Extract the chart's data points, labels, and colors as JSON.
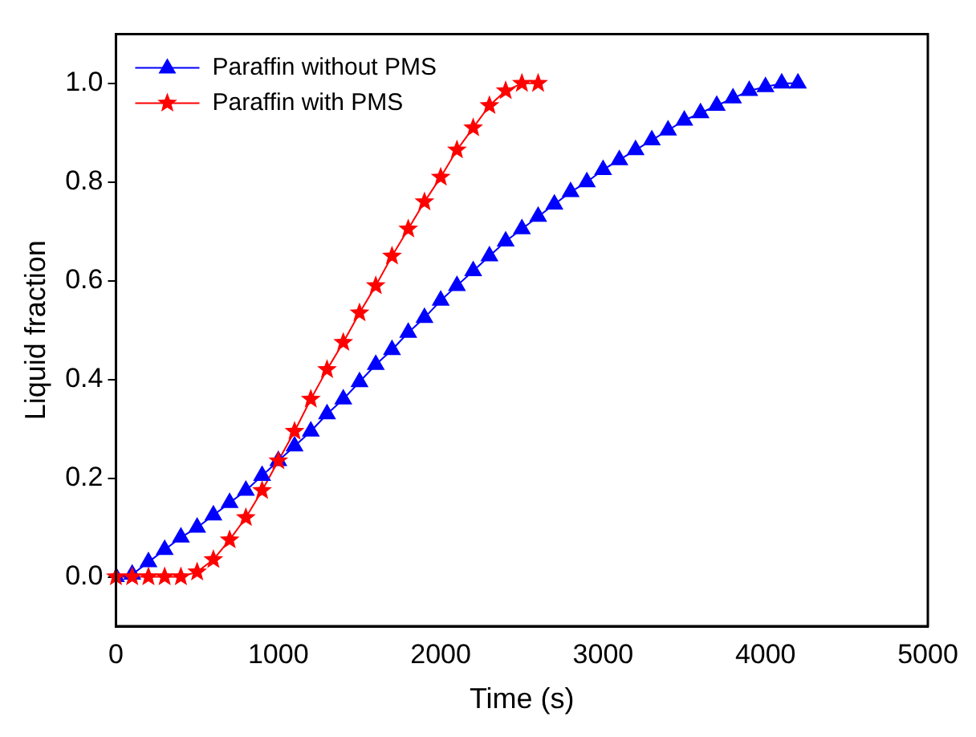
{
  "chart_data": {
    "type": "line",
    "xlabel": "Time (s)",
    "ylabel": "Liquid fraction",
    "xlim": [
      0,
      5000
    ],
    "xticks": [
      0,
      1000,
      2000,
      3000,
      4000,
      5000
    ],
    "ylim": [
      -0.1,
      1.1
    ],
    "yticks": [
      {
        "value": 0,
        "label": "0.0"
      },
      {
        "value": 0.2,
        "label": "0.2"
      },
      {
        "value": 0.4,
        "label": "0.4"
      },
      {
        "value": 0.6,
        "label": "0.6"
      },
      {
        "value": 0.8,
        "label": "0.8"
      },
      {
        "value": 1,
        "label": "1.0"
      }
    ],
    "grid": false,
    "legend": "top left",
    "line_style": "solid",
    "series": [
      {
        "name": "Paraffin without PMS",
        "color": "#0000ff",
        "marker": "triangle",
        "x": [
          0,
          100,
          200,
          300,
          400,
          500,
          600,
          700,
          800,
          900,
          1000,
          1100,
          1200,
          1300,
          1400,
          1500,
          1600,
          1700,
          1800,
          1900,
          2000,
          2100,
          2200,
          2300,
          2400,
          2500,
          2600,
          2700,
          2800,
          2900,
          3000,
          3100,
          3200,
          3300,
          3400,
          3500,
          3600,
          3700,
          3800,
          3900,
          4000,
          4100,
          4200
        ],
        "values": [
          0,
          0.005,
          0.03,
          0.055,
          0.08,
          0.1,
          0.125,
          0.15,
          0.175,
          0.205,
          0.235,
          0.265,
          0.295,
          0.33,
          0.36,
          0.395,
          0.43,
          0.46,
          0.495,
          0.525,
          0.56,
          0.59,
          0.62,
          0.65,
          0.68,
          0.705,
          0.73,
          0.755,
          0.78,
          0.8,
          0.825,
          0.845,
          0.865,
          0.885,
          0.905,
          0.925,
          0.94,
          0.955,
          0.97,
          0.985,
          0.993,
          1,
          1
        ]
      },
      {
        "name": "Paraffin with PMS",
        "color": "#ff0000",
        "marker": "star",
        "x": [
          0,
          100,
          200,
          300,
          400,
          500,
          600,
          700,
          800,
          900,
          1000,
          1100,
          1200,
          1300,
          1400,
          1500,
          1600,
          1700,
          1800,
          1900,
          2000,
          2100,
          2200,
          2300,
          2400,
          2500,
          2600
        ],
        "values": [
          0,
          0,
          0,
          0,
          0,
          0.01,
          0.035,
          0.075,
          0.12,
          0.175,
          0.235,
          0.295,
          0.36,
          0.42,
          0.475,
          0.535,
          0.59,
          0.65,
          0.705,
          0.76,
          0.81,
          0.865,
          0.91,
          0.955,
          0.985,
          1,
          1
        ]
      }
    ]
  }
}
